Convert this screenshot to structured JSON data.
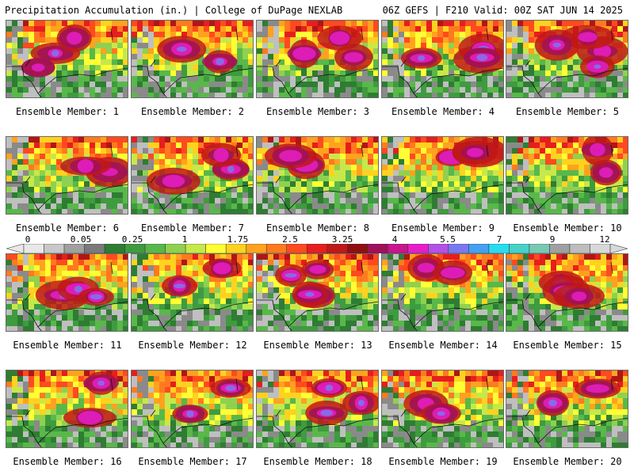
{
  "header": {
    "left": "Precipitation Accumulation (in.) | College of DuPage NEXLAB",
    "right": "06Z GEFS | F210 Valid: 00Z SAT JUN 14 2025"
  },
  "member_label_prefix": "Ensemble Member: ",
  "members": [
    1,
    2,
    3,
    4,
    5,
    6,
    7,
    8,
    9,
    10,
    11,
    12,
    13,
    14,
    15,
    16,
    17,
    18,
    19,
    20
  ],
  "colorbar": {
    "tick_labels": [
      "0",
      "0.05",
      "0.25",
      "1",
      "1.75",
      "2.5",
      "3.25",
      "4",
      "5.5",
      "7",
      "9",
      "12"
    ],
    "colors": [
      "#e8e8e8",
      "#c8c8c8",
      "#a0a0a0",
      "#7a7a7a",
      "#2e7d32",
      "#3f9b3f",
      "#59b84a",
      "#8fd14f",
      "#c7e84a",
      "#ffff33",
      "#ffd21f",
      "#ffa21f",
      "#ff7a1f",
      "#ff4a1f",
      "#e61e1e",
      "#c01818",
      "#901010",
      "#a0105a",
      "#c8168c",
      "#e61ec8",
      "#b450e6",
      "#7a78f0",
      "#46a0f0",
      "#28dcf0",
      "#46d2c8",
      "#78c8b4",
      "#a0a0a0",
      "#bdbdbd",
      "#d8d8d8"
    ]
  }
}
